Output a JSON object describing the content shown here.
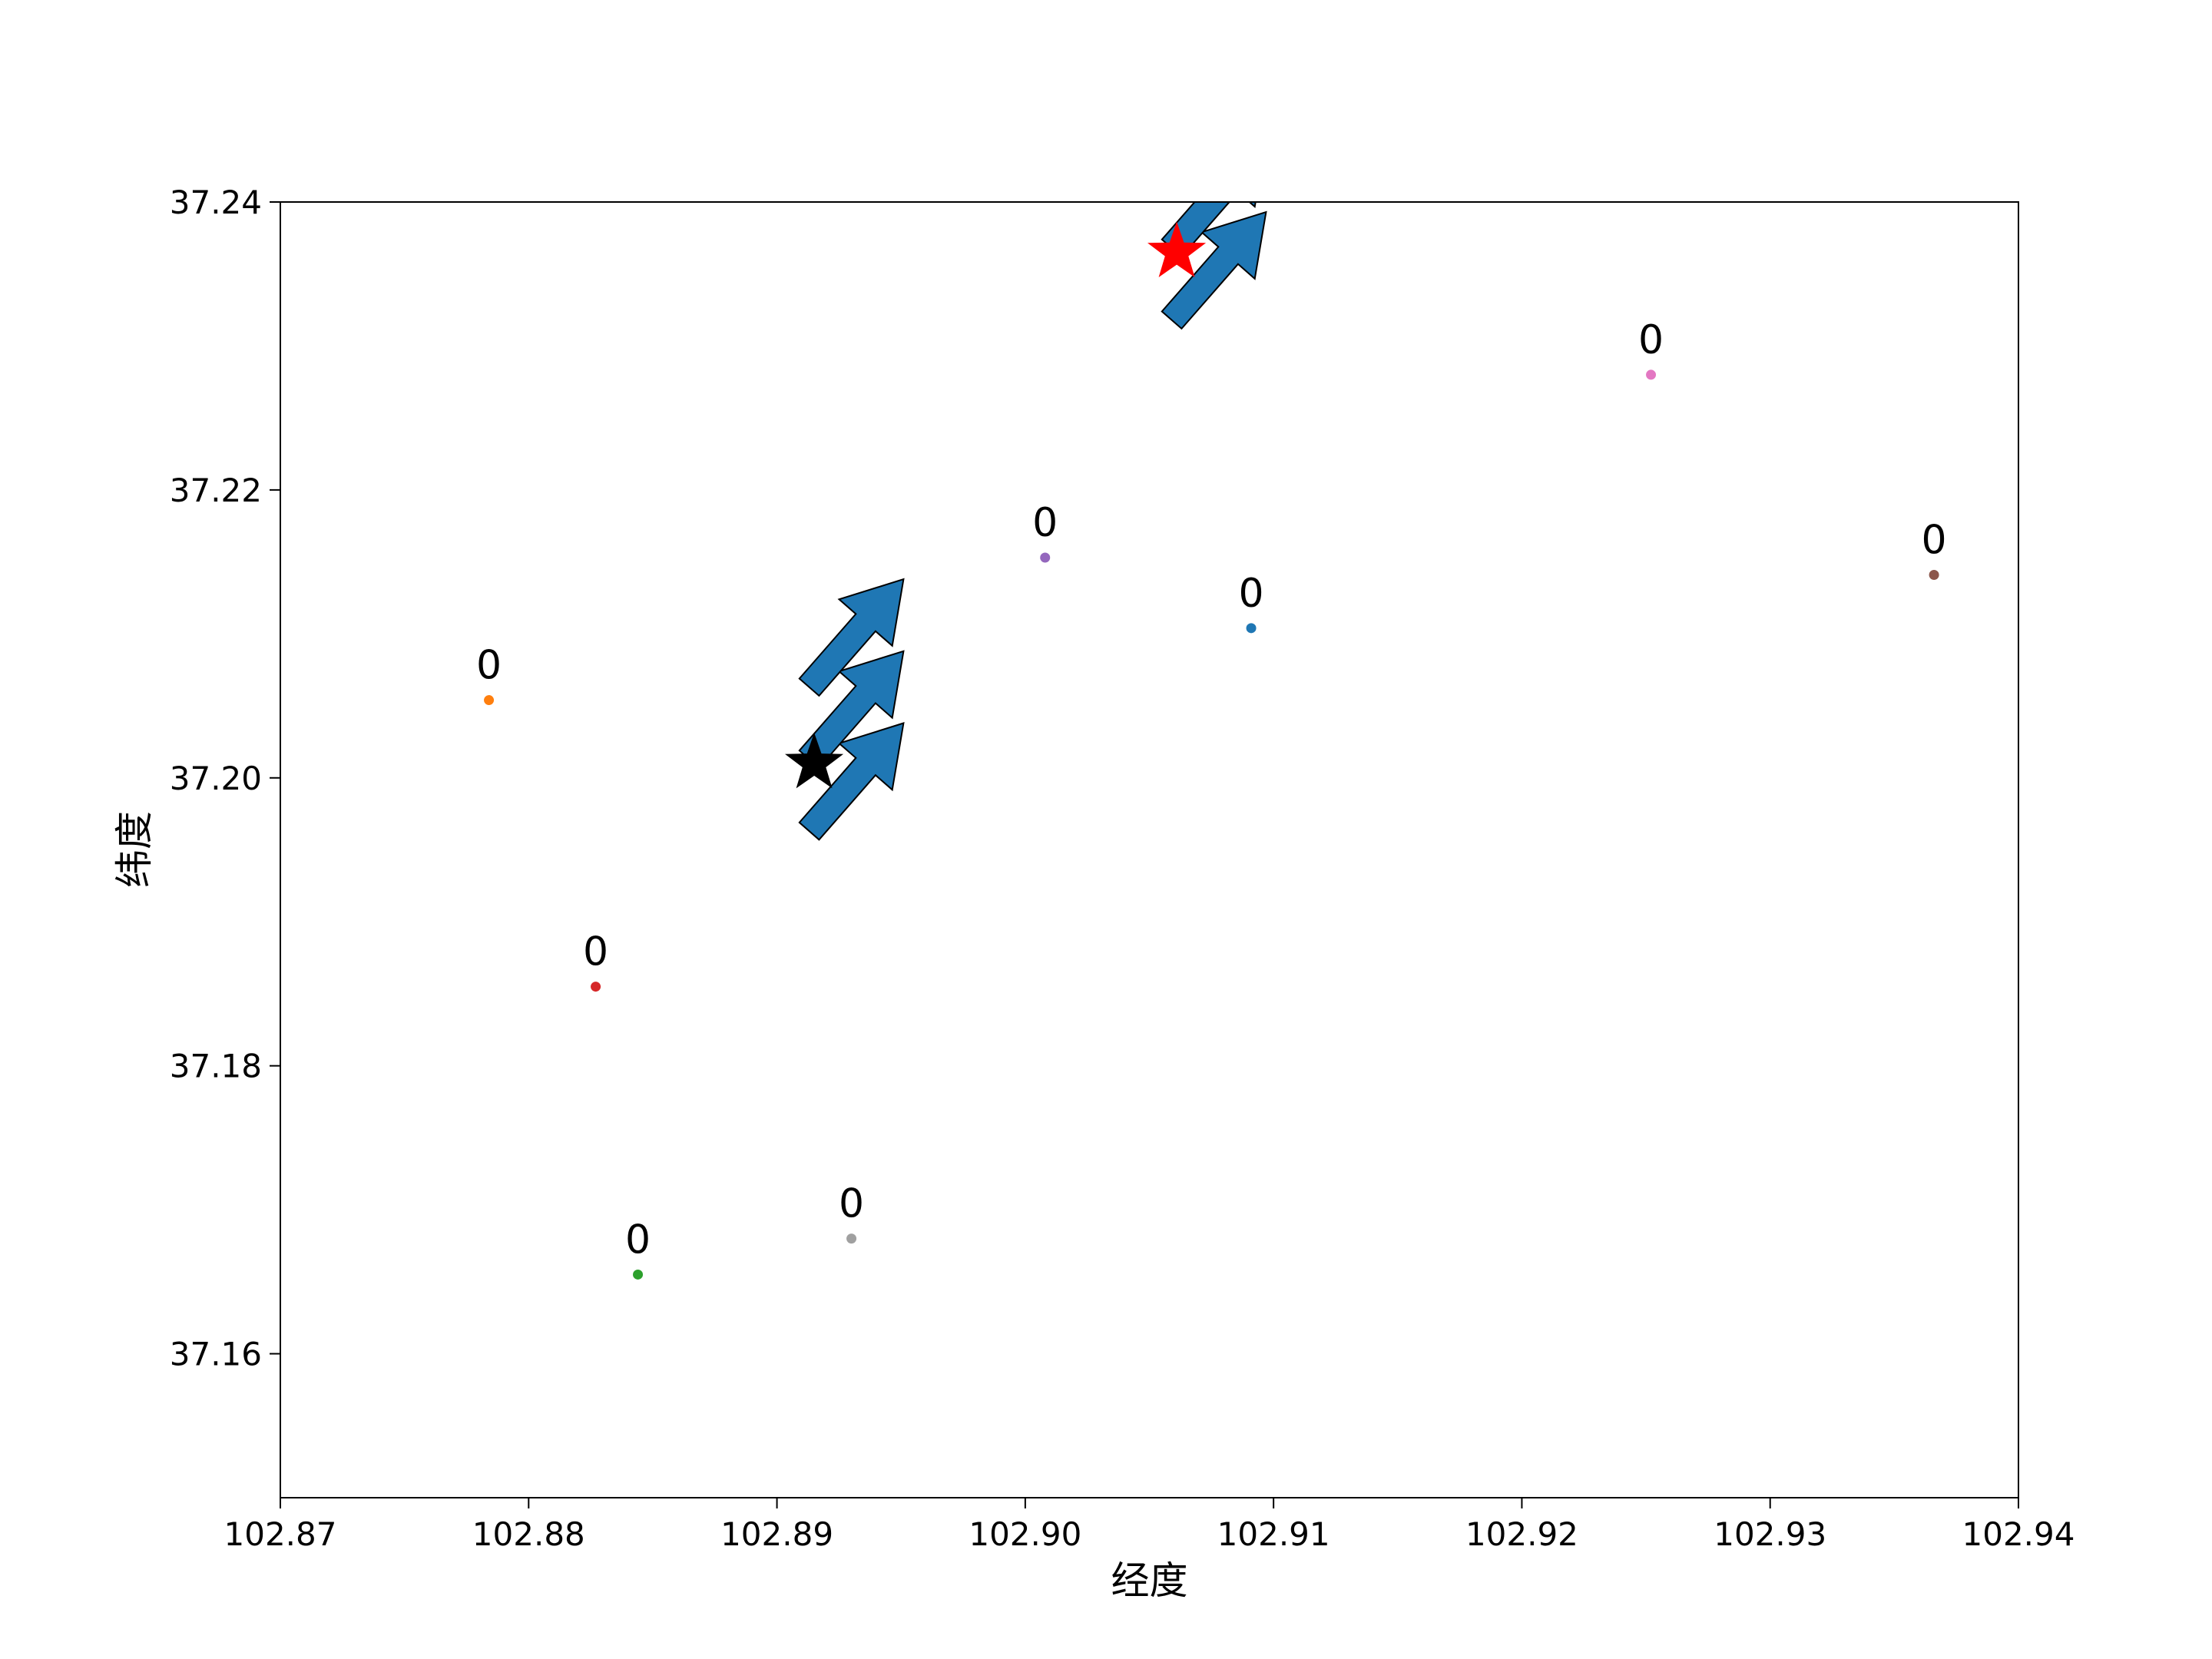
{
  "chart_data": {
    "type": "scatter",
    "title": "",
    "xlabel": "经度",
    "ylabel": "纬度",
    "xlim": [
      102.87,
      102.94
    ],
    "ylim": [
      37.15,
      37.24
    ],
    "xticks": [
      "102.87",
      "102.88",
      "102.89",
      "102.90",
      "102.91",
      "102.92",
      "102.93",
      "102.94"
    ],
    "yticks": [
      "37.16",
      "37.18",
      "37.20",
      "37.22",
      "37.24"
    ],
    "grid": false,
    "points": [
      {
        "x": 102.9091,
        "y": 37.2104,
        "label": "0",
        "color": "#1f77b4"
      },
      {
        "x": 102.8784,
        "y": 37.2054,
        "label": "0",
        "color": "#ff7f0e"
      },
      {
        "x": 102.8844,
        "y": 37.1655,
        "label": "0",
        "color": "#2ca02c"
      },
      {
        "x": 102.8827,
        "y": 37.1855,
        "label": "0",
        "color": "#d62728"
      },
      {
        "x": 102.9008,
        "y": 37.2153,
        "label": "0",
        "color": "#9467bd"
      },
      {
        "x": 102.9366,
        "y": 37.2141,
        "label": "0",
        "color": "#8c564b"
      },
      {
        "x": 102.9252,
        "y": 37.228,
        "label": "0",
        "color": "#e377c2"
      },
      {
        "x": 102.893,
        "y": 37.168,
        "label": "0",
        "color": "#a0a0a0"
      }
    ],
    "stars": [
      {
        "x": 102.9061,
        "y": 37.2365,
        "color": "#ff0000"
      },
      {
        "x": 102.8915,
        "y": 37.201,
        "color": "#000000"
      }
    ],
    "arrows": [
      {
        "x": 102.8913,
        "y": 37.1963,
        "dx": 0.0038,
        "dy": 0.0075,
        "color": "#1f77b4"
      },
      {
        "x": 102.8913,
        "y": 37.2013,
        "dx": 0.0038,
        "dy": 0.0075,
        "color": "#1f77b4"
      },
      {
        "x": 102.8913,
        "y": 37.2063,
        "dx": 0.0038,
        "dy": 0.0075,
        "color": "#1f77b4"
      },
      {
        "x": 102.9059,
        "y": 37.2318,
        "dx": 0.0038,
        "dy": 0.0075,
        "color": "#1f77b4"
      },
      {
        "x": 102.9059,
        "y": 37.2368,
        "dx": 0.0038,
        "dy": 0.0075,
        "color": "#1f77b4"
      }
    ]
  }
}
